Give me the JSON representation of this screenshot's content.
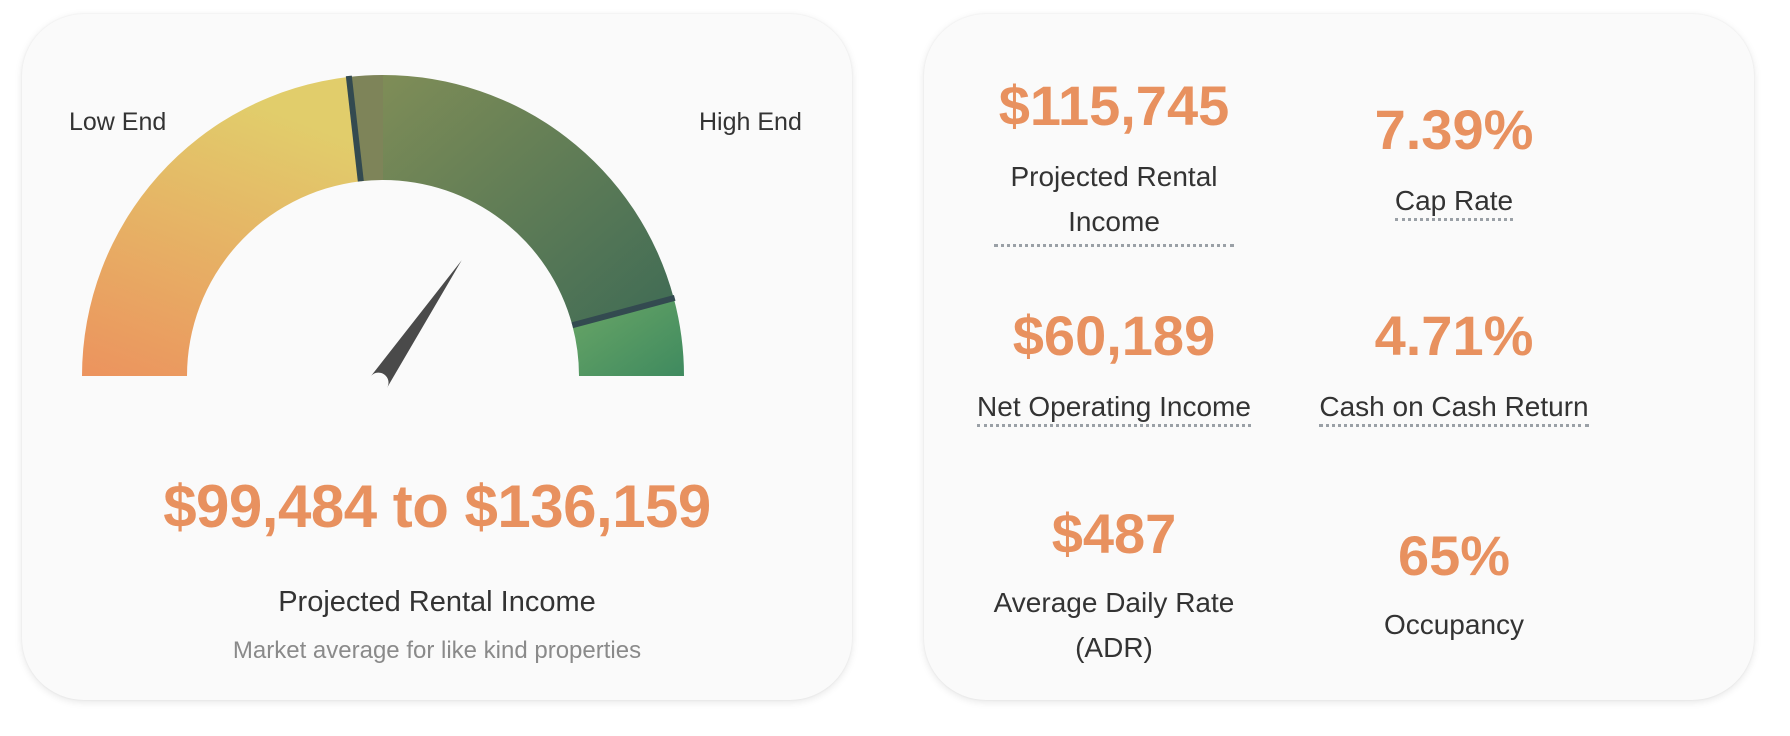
{
  "gauge": {
    "low_label": "Low End",
    "high_label": "High End",
    "range_text": "$99,484 to $136,159",
    "range_caption": "Projected Rental Income",
    "range_note": "Market average for like kind properties",
    "needle_fraction": 0.69,
    "colors": {
      "low": "#ec935e",
      "mid": "#e1cd6b",
      "high_olive": "#7a8c56",
      "high_dark": "#3f6b55",
      "top_green": "#6aa666",
      "top_deep": "#3f8a5f",
      "divider": "#334a50",
      "needle": "#4a4a4a"
    }
  },
  "metrics": [
    {
      "value": "$115,745",
      "label": "Projected Rental Income"
    },
    {
      "value": "7.39%",
      "label": "Cap Rate"
    },
    {
      "value": "$60,189",
      "label": "Net Operating Income"
    },
    {
      "value": "4.71%",
      "label": "Cash on Cash Return"
    },
    {
      "value": "$487",
      "label": "Average Daily Rate (ADR)"
    },
    {
      "value": "65%",
      "label": "Occupancy"
    }
  ],
  "accent_color": "#e8915f"
}
